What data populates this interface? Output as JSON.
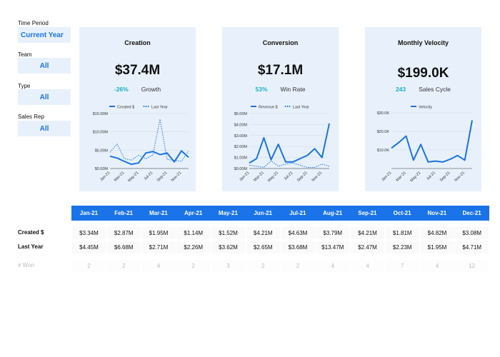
{
  "filters": {
    "time_period": {
      "label": "Time Period",
      "value": "Current Year"
    },
    "team": {
      "label": "Team",
      "value": "All"
    },
    "type": {
      "label": "Type",
      "value": "All"
    },
    "sales_rep": {
      "label": "Sales Rep",
      "value": "All"
    }
  },
  "cards": [
    {
      "title": "Creation",
      "value": "$37.4M",
      "pct": "-26%",
      "pct_label": "Growth"
    },
    {
      "title": "Conversion",
      "value": "$17.1M",
      "pct": "53%",
      "pct_label": "Win Rate"
    },
    {
      "title": "Monthly Velocity",
      "value": "$199.0K",
      "pct": "243",
      "pct_label": "Sales Cycle"
    }
  ],
  "colors": {
    "accent": "#1a73e8",
    "card_bg": "#e8f1fb",
    "pct": "#1ab0c5"
  },
  "chart_data": [
    {
      "type": "line",
      "title": "",
      "x_tick_labels": [
        "Jan-21",
        "Mar-21",
        "May-21",
        "Jul-21",
        "Sep-21",
        "Nov-21"
      ],
      "y_tick_labels": [
        "$0.00M",
        "$5.00M",
        "$10.00M",
        "$15.00M"
      ],
      "ylim": [
        0,
        15
      ],
      "legend_placement": "top",
      "series": [
        {
          "name": "Created $",
          "style": "solid",
          "values": [
            3.34,
            2.87,
            1.95,
            1.14,
            1.52,
            4.21,
            4.63,
            3.79,
            4.21,
            1.81,
            4.82,
            3.08
          ]
        },
        {
          "name": "Last Year",
          "style": "dotted",
          "values": [
            4.45,
            6.68,
            2.71,
            2.26,
            3.62,
            2.65,
            3.68,
            13.47,
            2.47,
            2.23,
            1.95,
            4.71
          ]
        }
      ]
    },
    {
      "type": "line",
      "title": "",
      "x_tick_labels": [
        "Jan-21",
        "Mar-21",
        "May-21",
        "Jul-21",
        "Sep-21",
        "Nov-21"
      ],
      "y_tick_labels": [
        "$0.00M",
        "$1.00M",
        "$2.00M",
        "$3.00M",
        "$4.00M",
        "$5.00M"
      ],
      "ylim": [
        0,
        5
      ],
      "legend_placement": "top",
      "series": [
        {
          "name": "Revenue $",
          "style": "solid",
          "values": [
            0.5,
            0.9,
            2.8,
            0.8,
            2.2,
            0.6,
            0.6,
            0.9,
            1.2,
            1.8,
            1.0,
            4.1
          ]
        },
        {
          "name": "Last Year",
          "style": "dotted",
          "values": [
            0.3,
            0.2,
            0.1,
            0.7,
            0.2,
            0.4,
            0.5,
            0.3,
            0.1,
            0.1,
            0.4,
            0.2
          ]
        }
      ]
    },
    {
      "type": "line",
      "title": "",
      "x_tick_labels": [
        "Jan-21",
        "Mar-21",
        "May-21",
        "Jul-21",
        "Sep-21",
        "Nov-21"
      ],
      "y_tick_labels": [
        "$10.0K",
        "$20.0K",
        "$30.0K"
      ],
      "ylim": [
        0,
        30
      ],
      "legend_placement": "top",
      "series": [
        {
          "name": "Velocity",
          "style": "solid",
          "values": [
            11,
            14,
            17.5,
            4.5,
            13,
            3.5,
            4,
            3.5,
            5,
            7,
            4.5,
            26
          ]
        }
      ]
    }
  ],
  "table": {
    "months": [
      "Jan-21",
      "Feb-21",
      "Mar-21",
      "Apr-21",
      "May-21",
      "Jun-21",
      "Jul-21",
      "Aug-21",
      "Sep-21",
      "Oct-21",
      "Nov-21",
      "Dec-21"
    ],
    "rows": [
      {
        "label": "Created $",
        "values": [
          "$3.34M",
          "$2.87M",
          "$1.95M",
          "$1.14M",
          "$1.52M",
          "$4.21M",
          "$4.63M",
          "$3.79M",
          "$4.21M",
          "$1.81M",
          "$4.82M",
          "$3.08M"
        ]
      },
      {
        "label": "Last Year",
        "values": [
          "$4.45M",
          "$6.68M",
          "$2.71M",
          "$2.26M",
          "$3.62M",
          "$2.65M",
          "$3.68M",
          "$13.47M",
          "$2.47M",
          "$2.23M",
          "$1.95M",
          "$4.71M"
        ]
      },
      {
        "label": "# Won",
        "values": [
          "2",
          "2",
          "4",
          "2",
          "3",
          "2",
          "2",
          "4",
          "4",
          "7",
          "4",
          "12"
        ]
      }
    ]
  }
}
